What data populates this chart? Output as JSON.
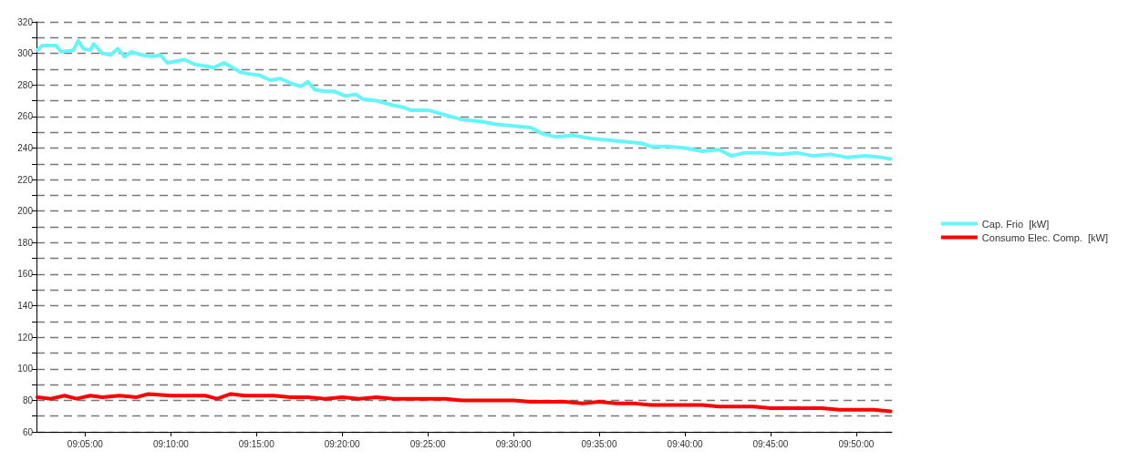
{
  "chart_data": {
    "type": "line",
    "xlim": [
      9.036,
      9.868
    ],
    "ylim": [
      60,
      320
    ],
    "xticks": [
      {
        "value": 9.0833,
        "label": "09:05:00"
      },
      {
        "value": 9.1667,
        "label": "09:10:00"
      },
      {
        "value": 9.25,
        "label": "09:15:00"
      },
      {
        "value": 9.3333,
        "label": "09:20:00"
      },
      {
        "value": 9.4167,
        "label": "09:25:00"
      },
      {
        "value": 9.5,
        "label": "09:30:00"
      },
      {
        "value": 9.5833,
        "label": "09:35:00"
      },
      {
        "value": 9.6667,
        "label": "09:40:00"
      },
      {
        "value": 9.75,
        "label": "09:45:00"
      },
      {
        "value": 9.8333,
        "label": "09:50:00"
      }
    ],
    "yticks": [
      60,
      {
        "value": 70,
        "label": null
      },
      80,
      {
        "value": 90,
        "label": null
      },
      100,
      {
        "value": 110,
        "label": null
      },
      120,
      {
        "value": 130,
        "label": null
      },
      140,
      {
        "value": 150,
        "label": null
      },
      160,
      {
        "value": 170,
        "label": null
      },
      180,
      {
        "value": 190,
        "label": null
      },
      200,
      {
        "value": 210,
        "label": null
      },
      220,
      {
        "value": 230,
        "label": null
      },
      240,
      {
        "value": 250,
        "label": null
      },
      260,
      {
        "value": 270,
        "label": null
      },
      280,
      {
        "value": 290,
        "label": null
      },
      300,
      {
        "value": 310,
        "label": null
      },
      320
    ],
    "grid": "y",
    "legend": "right",
    "marker": "none",
    "line_style": "solid",
    "series": [
      {
        "name": "Cap. Frio  [kW]",
        "color": "#66f5f8",
        "x": [
          9.0367,
          9.0417,
          9.055,
          9.06,
          9.0717,
          9.0767,
          9.0817,
          9.0883,
          9.0917,
          9.1,
          9.1083,
          9.115,
          9.1217,
          9.1283,
          9.1383,
          9.1483,
          9.1567,
          9.1633,
          9.1717,
          9.18,
          9.19,
          9.2,
          9.2083,
          9.2183,
          9.2267,
          9.235,
          9.2433,
          9.2533,
          9.2633,
          9.2733,
          9.2833,
          9.2933,
          9.3,
          9.3067,
          9.3167,
          9.325,
          9.3367,
          9.3467,
          9.3533,
          9.3667,
          9.3833,
          9.3917,
          9.4,
          9.4167,
          9.4333,
          9.45,
          9.4667,
          9.4833,
          9.5,
          9.5167,
          9.5283,
          9.5417,
          9.5583,
          9.575,
          9.5917,
          9.6083,
          9.625,
          9.6333,
          9.65,
          9.6667,
          9.6833,
          9.7,
          9.7117,
          9.725,
          9.7417,
          9.7583,
          9.775,
          9.7917,
          9.8083,
          9.825,
          9.8417,
          9.8583,
          9.8667
        ],
        "values": [
          302,
          305,
          305,
          301,
          302,
          308,
          303,
          302,
          306,
          300,
          299,
          303,
          298,
          301,
          299,
          298,
          299,
          294,
          295,
          296,
          293,
          292,
          291,
          294,
          291,
          288,
          287,
          286,
          283,
          284,
          281,
          279,
          282,
          277,
          276,
          276,
          273,
          274,
          271,
          270,
          267,
          266,
          264,
          264,
          261,
          258,
          257,
          255,
          254,
          253,
          249,
          247,
          248,
          246,
          245,
          244,
          243,
          241,
          241,
          240,
          238,
          239,
          235,
          237,
          237,
          236,
          237,
          235,
          236,
          234,
          235,
          234,
          233
        ]
      },
      {
        "name": "Consumo Elec. Comp.  [kW]",
        "color": "#ff0000",
        "x": [
          9.0367,
          9.05,
          9.0633,
          9.075,
          9.0883,
          9.1,
          9.1167,
          9.1333,
          9.145,
          9.1667,
          9.1833,
          9.2,
          9.2117,
          9.225,
          9.2383,
          9.25,
          9.2667,
          9.2833,
          9.3,
          9.3167,
          9.3333,
          9.35,
          9.3667,
          9.3833,
          9.4,
          9.4167,
          9.4333,
          9.45,
          9.4667,
          9.4833,
          9.5,
          9.5167,
          9.5333,
          9.55,
          9.5667,
          9.5833,
          9.6,
          9.6167,
          9.6333,
          9.65,
          9.6667,
          9.6833,
          9.7,
          9.7167,
          9.7333,
          9.75,
          9.7667,
          9.7833,
          9.8,
          9.8167,
          9.8333,
          9.85,
          9.8667
        ],
        "values": [
          82,
          81,
          83,
          81,
          83,
          82,
          83,
          82,
          84,
          83,
          83,
          83,
          81,
          84,
          83,
          83,
          83,
          82,
          82,
          81,
          82,
          81,
          82,
          81,
          81,
          81,
          81,
          80,
          80,
          80,
          80,
          79,
          79,
          79,
          78,
          79,
          78,
          78,
          77,
          77,
          77,
          77,
          76,
          76,
          76,
          75,
          75,
          75,
          75,
          74,
          74,
          74,
          73
        ]
      }
    ]
  }
}
